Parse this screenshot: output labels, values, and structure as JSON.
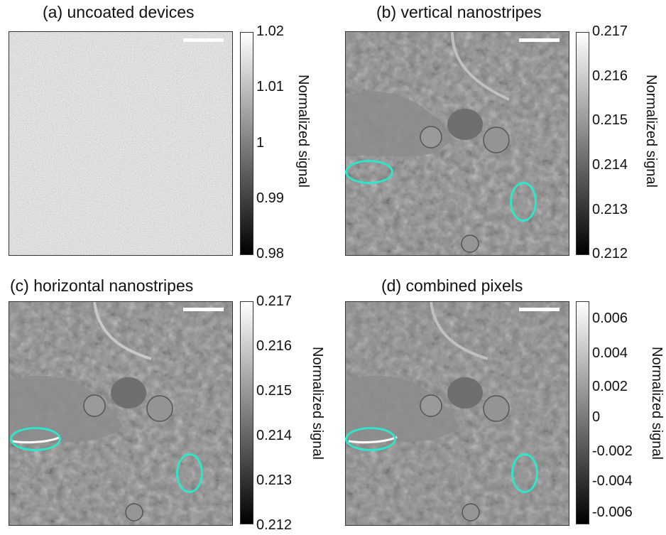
{
  "panels": [
    {
      "id": "a",
      "title": "(a) uncoated devices",
      "ticks": [
        "1.02",
        "1.01",
        "1",
        "0.99",
        "0.98"
      ],
      "colorbar_label": "Normalized signal"
    },
    {
      "id": "b",
      "title": "(b) vertical nanostripes",
      "ticks": [
        "0.217",
        "0.216",
        "0.215",
        "0.214",
        "0.213",
        "0.212"
      ],
      "colorbar_label": "Normalized signal"
    },
    {
      "id": "c",
      "title": "(c) horizontal nanostripes",
      "ticks": [
        "0.217",
        "0.216",
        "0.215",
        "0.214",
        "0.213",
        "0.212"
      ],
      "colorbar_label": "Normalized signal"
    },
    {
      "id": "d",
      "title": "(d) combined pixels",
      "ticks": [
        "0.006",
        "0.004",
        "0.002",
        "0",
        "-0.002",
        "-0.004",
        "-0.006"
      ],
      "colorbar_label": "Normalized signal"
    }
  ],
  "colors": {
    "highlight": "#2ee6c8",
    "scalebar": "#ffffff",
    "background_uncoated": "#7c7c7c"
  }
}
